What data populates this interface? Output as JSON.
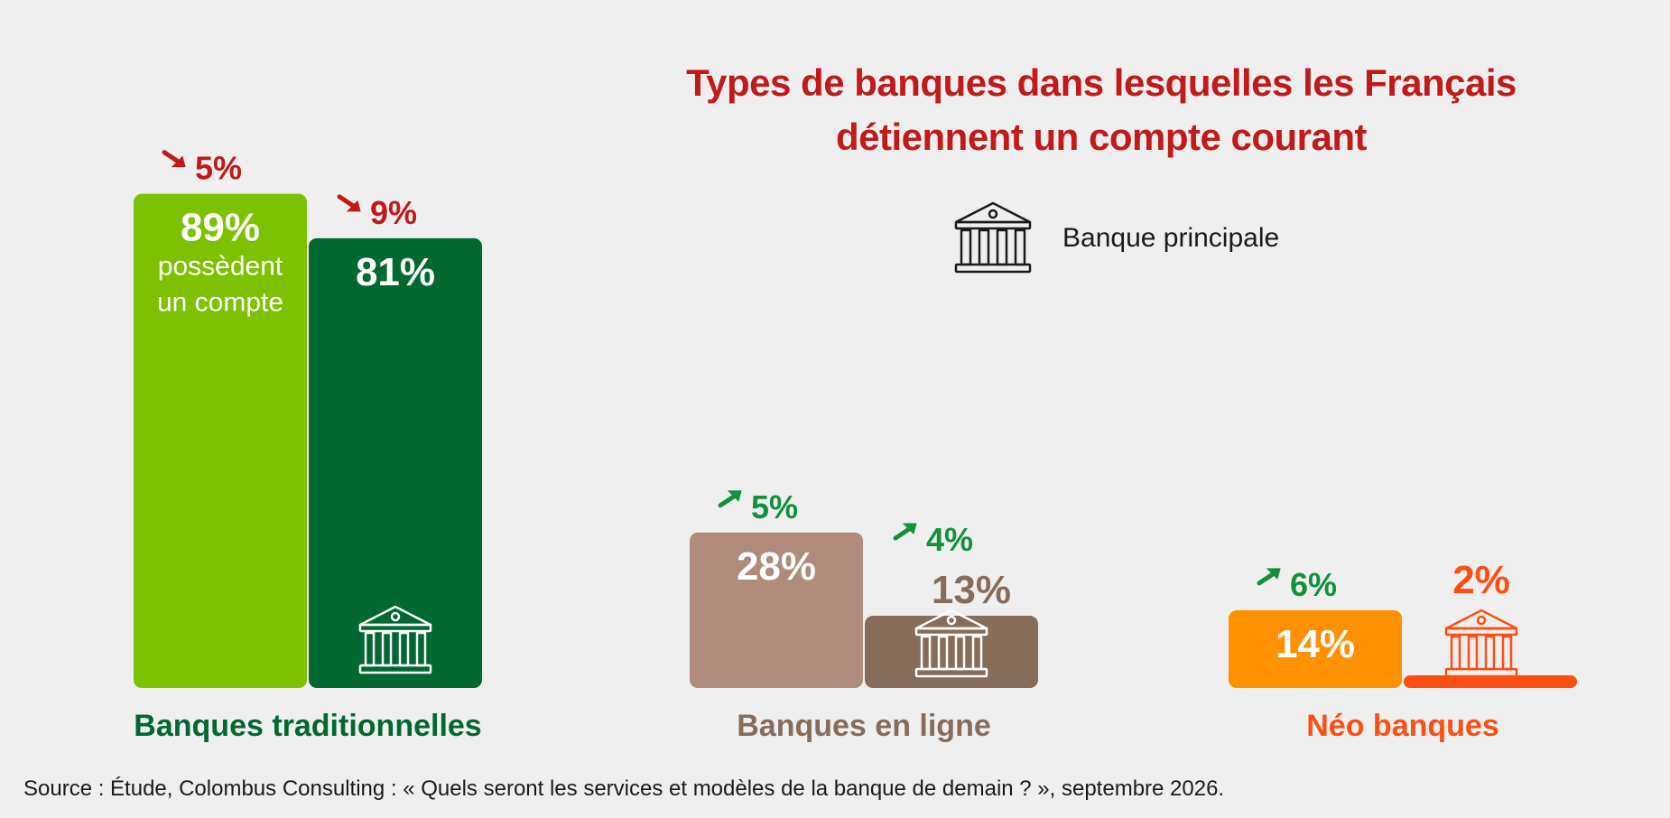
{
  "title": "Types de banques dans lesquelles les Français détiennent un compte courant",
  "legend": {
    "icon": "bank-icon",
    "label": "Banque principale"
  },
  "source": "Source : Étude, Colombus Consulting : « Quels seront les services et modèles de la banque de demain ? », septembre 2026.",
  "chart_data": {
    "type": "bar",
    "unit": "%",
    "categories": [
      "Banques traditionnelles",
      "Banques en ligne",
      "Néo banques"
    ],
    "ylim": [
      0,
      100
    ],
    "series": [
      {
        "values": [
          89,
          28,
          14
        ],
        "value_labels": [
          "89%",
          "28%",
          "14%"
        ],
        "note": "possèdent un compte",
        "change_labels": [
          "5%",
          "5%",
          "6%"
        ],
        "change_directions": [
          "down",
          "up",
          "up"
        ]
      },
      {
        "name": "Banque principale",
        "values": [
          81,
          13,
          2
        ],
        "value_labels": [
          "81%",
          "13%",
          "2%"
        ],
        "change_labels": [
          "9%",
          "4%",
          ""
        ],
        "change_directions": [
          "down",
          "up",
          ""
        ]
      }
    ],
    "colors": {
      "groups": [
        {
          "account": "#7dc200",
          "main": "#006830",
          "label": "#006830"
        },
        {
          "account": "#b08b7b",
          "main": "#866c5b",
          "label": "#866c5b"
        },
        {
          "account": "#ff9100",
          "main": "#ff4e12",
          "label": "#ff4e12"
        }
      ],
      "down": "#c01a1a",
      "up": "#12913b"
    }
  }
}
